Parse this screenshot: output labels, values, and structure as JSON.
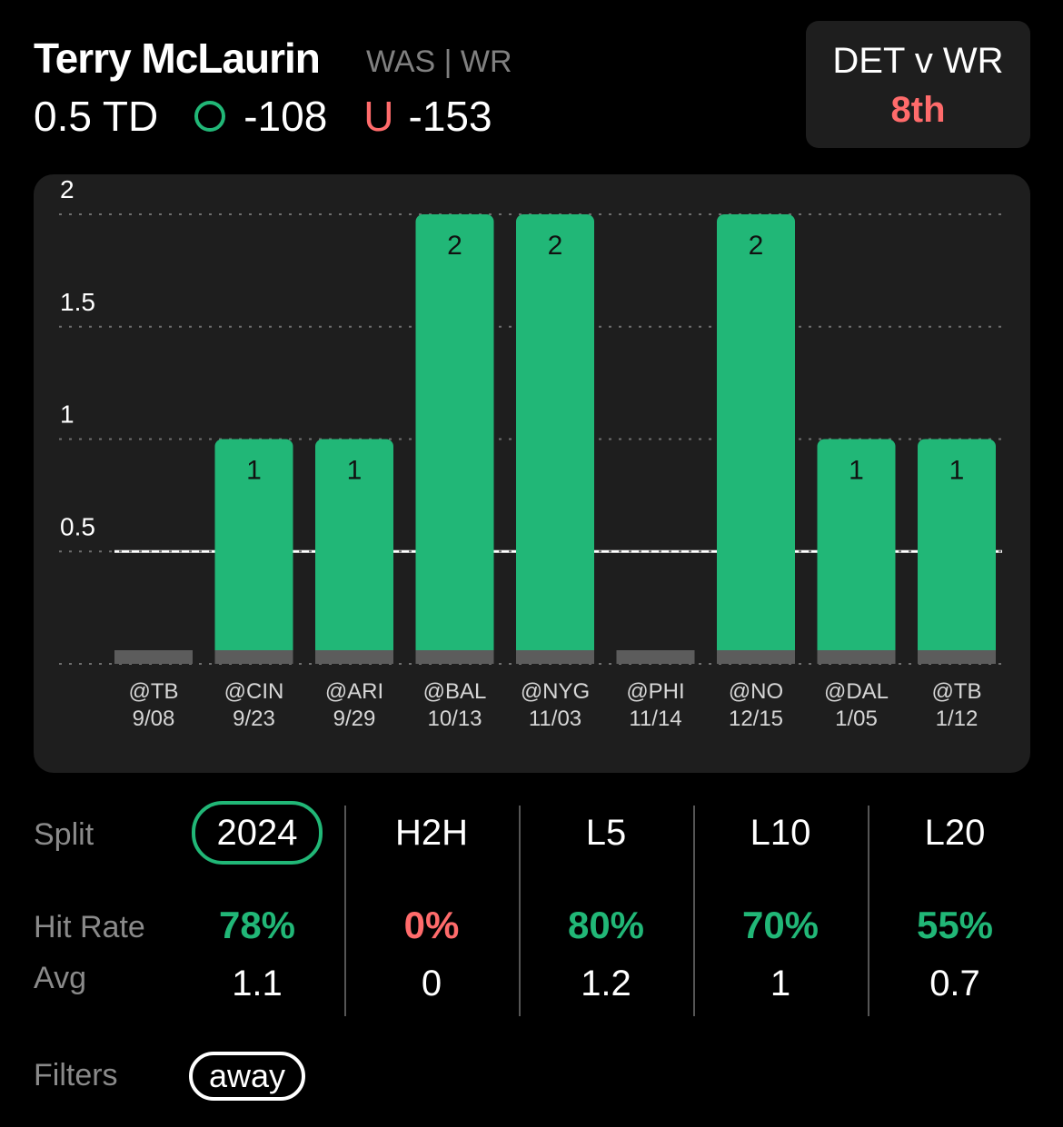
{
  "player": {
    "name": "Terry McLaurin",
    "meta": "WAS | WR",
    "prop_line": "0.5 TD",
    "over_symbol": "O",
    "over_odds": "-108",
    "under_symbol": "U",
    "under_odds": "-153"
  },
  "matchup": {
    "title": "DET v WR",
    "rank": "8th"
  },
  "chart_data": {
    "type": "bar",
    "categories": [
      "@TB 9/08",
      "@CIN 9/23",
      "@ARI 9/29",
      "@BAL 10/13",
      "@NYG 11/03",
      "@PHI 11/14",
      "@NO 12/15",
      "@DAL 1/05",
      "@TB 1/12"
    ],
    "opponents": [
      "@TB",
      "@CIN",
      "@ARI",
      "@BAL",
      "@NYG",
      "@PHI",
      "@NO",
      "@DAL",
      "@TB"
    ],
    "dates": [
      "9/08",
      "9/23",
      "9/29",
      "10/13",
      "11/03",
      "11/14",
      "12/15",
      "1/05",
      "1/12"
    ],
    "values": [
      0,
      1,
      1,
      2,
      2,
      0,
      2,
      1,
      1
    ],
    "data_labels": [
      "",
      "1",
      "1",
      "2",
      "2",
      "",
      "2",
      "1",
      "1"
    ],
    "yticks": [
      "0.5",
      "1",
      "1.5",
      "2"
    ],
    "ylim": [
      0,
      2
    ],
    "threshold": 0.5,
    "grid": true,
    "colors": {
      "hit": "#21b777",
      "miss": "#5c5c5c",
      "base": "#5c5c5c",
      "grid": "#6e6e6e",
      "threshold": "#ffffff",
      "label": "#111111"
    }
  },
  "stats": {
    "split_label": "Split",
    "hit_rate_label": "Hit Rate",
    "avg_label": "Avg",
    "filters_label": "Filters",
    "splits": [
      {
        "name": "2024",
        "hit_rate": "78%",
        "avg": "1.1",
        "hit_color": "#21b777",
        "active": true
      },
      {
        "name": "H2H",
        "hit_rate": "0%",
        "avg": "0",
        "hit_color": "#ff6b6b",
        "active": false
      },
      {
        "name": "L5",
        "hit_rate": "80%",
        "avg": "1.2",
        "hit_color": "#21b777",
        "active": false
      },
      {
        "name": "L10",
        "hit_rate": "70%",
        "avg": "1",
        "hit_color": "#21b777",
        "active": false
      },
      {
        "name": "L20",
        "hit_rate": "55%",
        "avg": "0.7",
        "hit_color": "#21b777",
        "active": false
      }
    ],
    "filter": "away"
  }
}
